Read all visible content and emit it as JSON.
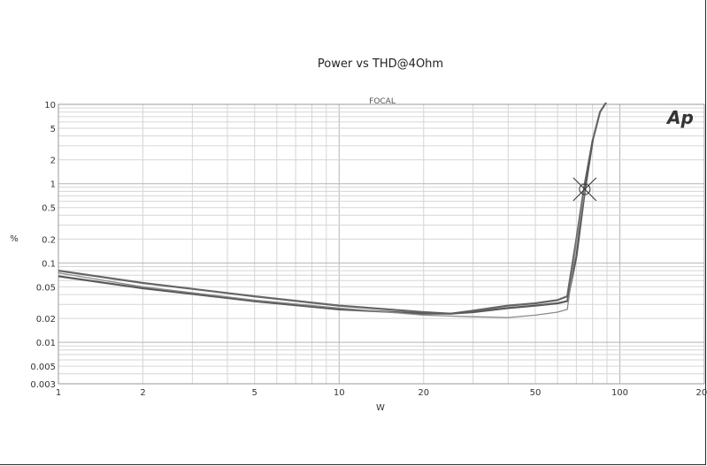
{
  "chart_data": {
    "type": "line",
    "title": "Power vs THD@4Ohm",
    "xlabel": "W",
    "ylabel": "%",
    "x_scale": "log",
    "y_scale": "log",
    "xlim": [
      1,
      200
    ],
    "ylim": [
      0.003,
      10
    ],
    "x_ticks": [
      1,
      2,
      5,
      10,
      20,
      50,
      100,
      200
    ],
    "x_tick_labels": [
      "1",
      "2",
      "5",
      "10",
      "20",
      "50",
      "100",
      "200"
    ],
    "y_ticks": [
      10,
      5,
      2,
      1,
      0.5,
      0.2,
      0.1,
      0.05,
      0.02,
      0.01,
      0.005,
      0.003
    ],
    "y_tick_labels": [
      "10",
      "5",
      "2",
      "1",
      "0.5",
      "0.2",
      "0.1",
      "0.05",
      "0.02",
      "0.01",
      "0.005",
      "0.003"
    ],
    "grid": true,
    "annotation": "FOCAL",
    "logo_text": "Ap",
    "marker": {
      "x": 75,
      "y": 0.85
    },
    "series": [
      {
        "color": "#666666",
        "stroke": 2.2,
        "x": [
          1,
          2,
          5,
          10,
          20,
          25,
          30,
          40,
          50,
          60,
          65,
          70,
          75,
          80,
          85,
          90
        ],
        "y": [
          0.08,
          0.056,
          0.038,
          0.029,
          0.024,
          0.023,
          0.025,
          0.029,
          0.031,
          0.034,
          0.038,
          0.2,
          1.0,
          3.5,
          8,
          11
        ]
      },
      {
        "color": "#5a5a5a",
        "stroke": 2.2,
        "x": [
          1,
          2,
          5,
          10,
          20,
          25,
          30,
          40,
          50,
          60,
          65,
          70,
          75,
          80
        ],
        "y": [
          0.068,
          0.048,
          0.033,
          0.026,
          0.023,
          0.023,
          0.024,
          0.027,
          0.029,
          0.031,
          0.033,
          0.12,
          0.8,
          3.5
        ]
      },
      {
        "color": "#8a8a8a",
        "stroke": 1.3,
        "x": [
          1,
          2,
          5,
          10,
          20,
          30,
          40,
          50,
          60,
          65,
          70,
          75
        ],
        "y": [
          0.075,
          0.05,
          0.034,
          0.027,
          0.022,
          0.021,
          0.0205,
          0.022,
          0.024,
          0.026,
          0.18,
          0.85
        ]
      }
    ]
  }
}
